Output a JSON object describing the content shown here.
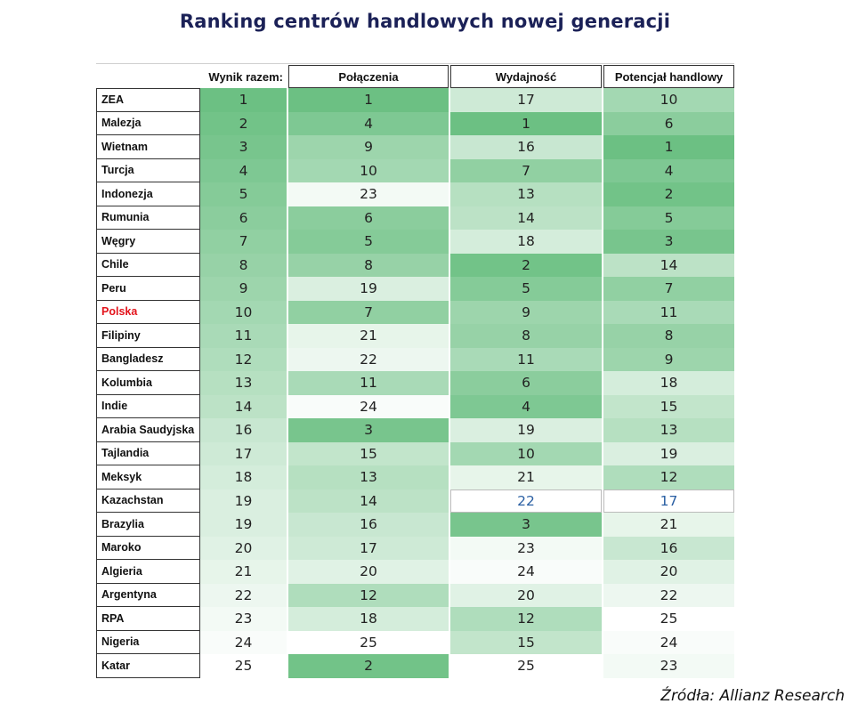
{
  "title": "Ranking centrów handlowych nowej generacji",
  "source": "Źródła: Allianz Research",
  "colors": {
    "title": "#1b2157",
    "highlight_country": "#e3141c",
    "highlight_value": "#2a5fa3",
    "scale_best": "#6cc083",
    "scale_worst": "#ffffff"
  },
  "chart_data": {
    "type": "table",
    "title": "Ranking centrów handlowych nowej generacji",
    "columns": [
      "Wynik razem:",
      "Połączenia",
      "Wydajność",
      "Potencjał handlowy"
    ],
    "highlighted_country": "Polska",
    "rows": [
      {
        "country": "ZEA",
        "values": [
          1,
          1,
          17,
          10
        ]
      },
      {
        "country": "Malezja",
        "values": [
          2,
          4,
          1,
          6
        ]
      },
      {
        "country": "Wietnam",
        "values": [
          3,
          9,
          16,
          1
        ]
      },
      {
        "country": "Turcja",
        "values": [
          4,
          10,
          7,
          4
        ]
      },
      {
        "country": "Indonezja",
        "values": [
          5,
          23,
          13,
          2
        ]
      },
      {
        "country": "Rumunia",
        "values": [
          6,
          6,
          14,
          5
        ]
      },
      {
        "country": "Węgry",
        "values": [
          7,
          5,
          18,
          3
        ]
      },
      {
        "country": "Chile",
        "values": [
          8,
          8,
          2,
          14
        ]
      },
      {
        "country": "Peru",
        "values": [
          9,
          19,
          5,
          7
        ]
      },
      {
        "country": "Polska",
        "values": [
          10,
          7,
          9,
          11
        ]
      },
      {
        "country": "Filipiny",
        "values": [
          11,
          21,
          8,
          8
        ]
      },
      {
        "country": "Bangladesz",
        "values": [
          12,
          22,
          11,
          9
        ]
      },
      {
        "country": "Kolumbia",
        "values": [
          13,
          11,
          6,
          18
        ]
      },
      {
        "country": "Indie",
        "values": [
          14,
          24,
          4,
          15
        ]
      },
      {
        "country": "Arabia Saudyjska",
        "values": [
          16,
          3,
          19,
          13
        ]
      },
      {
        "country": "Tajlandia",
        "values": [
          17,
          15,
          10,
          19
        ]
      },
      {
        "country": "Meksyk",
        "values": [
          18,
          13,
          21,
          12
        ]
      },
      {
        "country": "Kazachstan",
        "values": [
          19,
          14,
          22,
          17
        ]
      },
      {
        "country": "Brazylia",
        "values": [
          19,
          16,
          3,
          21
        ]
      },
      {
        "country": "Maroko",
        "values": [
          20,
          17,
          23,
          16
        ]
      },
      {
        "country": "Algieria",
        "values": [
          21,
          20,
          24,
          20
        ]
      },
      {
        "country": "Argentyna",
        "values": [
          22,
          12,
          20,
          22
        ]
      },
      {
        "country": "RPA",
        "values": [
          23,
          18,
          12,
          25
        ]
      },
      {
        "country": "Nigeria",
        "values": [
          24,
          25,
          15,
          24
        ]
      },
      {
        "country": "Katar",
        "values": [
          25,
          2,
          25,
          23
        ]
      }
    ]
  }
}
